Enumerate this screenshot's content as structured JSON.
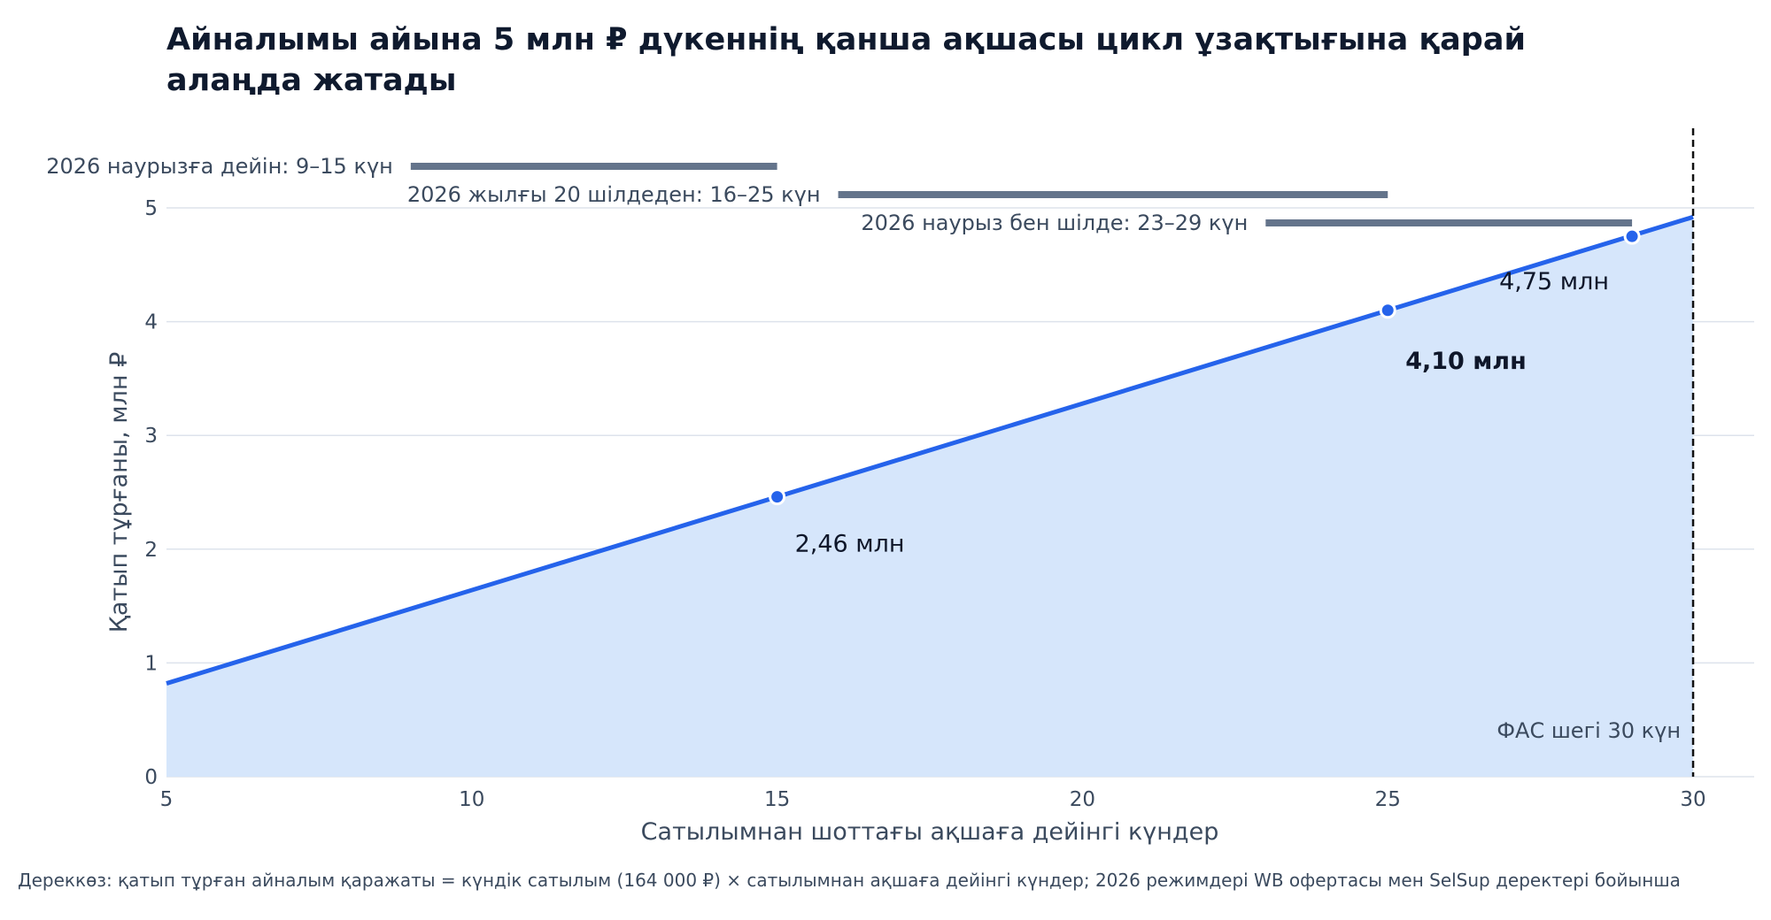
{
  "chart_data": {
    "type": "area",
    "title": "Айналымы айына 5 млн ₽ дүкеннің қанша ақшасы цикл ұзақтығына қарай алаңда жатады",
    "xlabel": "Сатылымнан шоттағы ақшаға дейінгі күндер",
    "ylabel": "Қатып тұрғаны, млн ₽",
    "xlim": [
      5,
      31
    ],
    "ylim": [
      0,
      5.7
    ],
    "x_ticks": [
      "5",
      "10",
      "15",
      "20",
      "25",
      "30"
    ],
    "y_ticks": [
      "0",
      "1",
      "2",
      "3",
      "4",
      "5"
    ],
    "grid": "horizontal",
    "series": [
      {
        "x": [
          5,
          30
        ],
        "y": [
          0.82,
          4.92
        ]
      }
    ],
    "points": [
      {
        "x": 15,
        "y": 2.46,
        "label": "2,46 млн",
        "bold": false
      },
      {
        "x": 25,
        "y": 4.1,
        "label": "4,10 млн",
        "bold": true
      },
      {
        "x": 29,
        "y": 4.75,
        "label": "4,75 млн",
        "bold": false
      }
    ],
    "regimes": [
      {
        "label": "2026 наурызға дейін: 9–15 күн",
        "from": 9,
        "to": 15
      },
      {
        "label": "2026 жылғы 20 шілдеден: 16–25 күн",
        "from": 16,
        "to": 25
      },
      {
        "label": "2026 наурыз бен шілде: 23–29 күн",
        "from": 23,
        "to": 29
      }
    ],
    "reference_line": {
      "x": 30,
      "label": "ФАС шегі 30 күн"
    },
    "colors": {
      "line": "#2563eb",
      "fill": "#d6e6fb",
      "regime": "#64748b",
      "grid": "#dde3ec",
      "reference": "#111111"
    }
  },
  "footnote": "Дереккөз: қатып тұрған айналым қаражаты = күндік сатылым (164 000 ₽) × сатылымнан ақшаға дейінгі күндер; 2026 режимдері WB офертасы мен SelSup деректері бойынша"
}
